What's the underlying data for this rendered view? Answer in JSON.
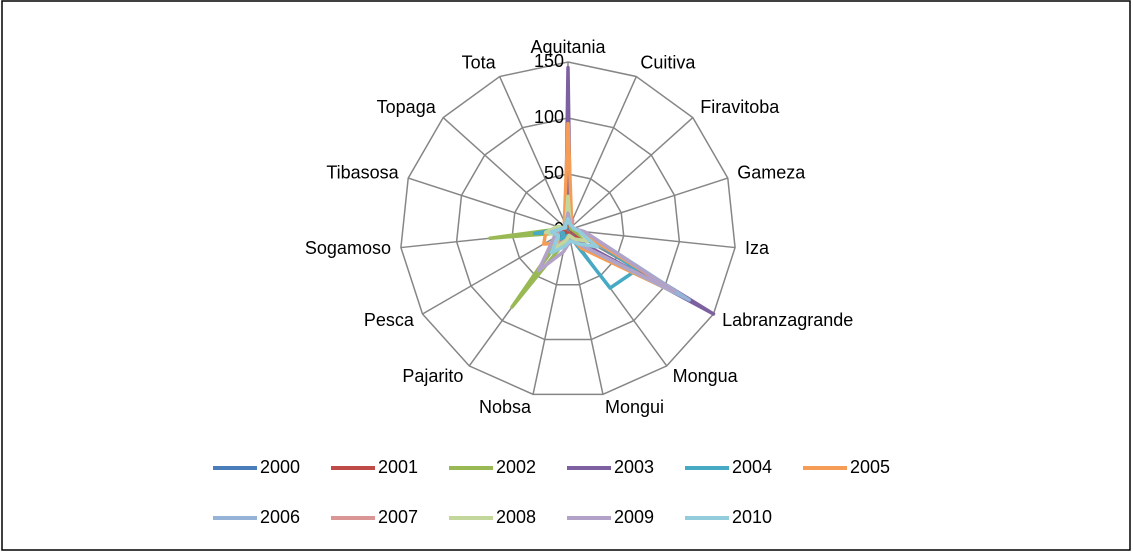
{
  "chart_data": {
    "type": "radar",
    "categories": [
      "Aquitania",
      "Cuitiva",
      "Firavitoba",
      "Gameza",
      "Iza",
      "Labranzagrande",
      "Mongua",
      "Mongui",
      "Nobsa",
      "Pajarito",
      "Pesca",
      "Sogamoso",
      "Tibasosa",
      "Topaga",
      "Tota"
    ],
    "rlim": [
      0,
      150
    ],
    "rticks": [
      0,
      50,
      100,
      150
    ],
    "grid": true,
    "legend": "bottom",
    "series": [
      {
        "name": "2000",
        "color": "#4a7ebb",
        "values": [
          5,
          3,
          2,
          2,
          3,
          10,
          5,
          3,
          3,
          3,
          3,
          5,
          3,
          2,
          3
        ]
      },
      {
        "name": "2001",
        "color": "#be4b48",
        "values": [
          5,
          5,
          3,
          3,
          3,
          15,
          8,
          3,
          3,
          3,
          3,
          5,
          3,
          2,
          3
        ]
      },
      {
        "name": "2002",
        "color": "#98b954",
        "values": [
          10,
          5,
          3,
          3,
          5,
          20,
          10,
          5,
          10,
          85,
          5,
          70,
          5,
          3,
          5
        ]
      },
      {
        "name": "2003",
        "color": "#7d60a0",
        "values": [
          145,
          5,
          5,
          5,
          10,
          150,
          10,
          5,
          10,
          20,
          5,
          10,
          5,
          3,
          5
        ]
      },
      {
        "name": "2004",
        "color": "#46aac5",
        "values": [
          10,
          5,
          5,
          5,
          10,
          71,
          64,
          5,
          5,
          10,
          5,
          30,
          5,
          3,
          5
        ]
      },
      {
        "name": "2005",
        "color": "#f59d56",
        "values": [
          95,
          8,
          5,
          5,
          10,
          120,
          20,
          5,
          10,
          15,
          25,
          20,
          5,
          3,
          8
        ]
      },
      {
        "name": "2006",
        "color": "#95b3d7",
        "values": [
          15,
          5,
          5,
          5,
          15,
          125,
          15,
          5,
          10,
          20,
          10,
          10,
          5,
          3,
          5
        ]
      },
      {
        "name": "2007",
        "color": "#d99694",
        "values": [
          10,
          10,
          5,
          5,
          10,
          20,
          10,
          5,
          10,
          15,
          10,
          10,
          5,
          3,
          5
        ]
      },
      {
        "name": "2008",
        "color": "#c3d69b",
        "values": [
          30,
          5,
          5,
          5,
          10,
          20,
          10,
          5,
          10,
          20,
          10,
          20,
          10,
          3,
          5
        ]
      },
      {
        "name": "2009",
        "color": "#b3a2c7",
        "values": [
          15,
          5,
          5,
          5,
          15,
          110,
          15,
          10,
          20,
          45,
          15,
          10,
          5,
          3,
          5
        ]
      },
      {
        "name": "2010",
        "color": "#93cddd",
        "values": [
          10,
          5,
          5,
          5,
          10,
          30,
          15,
          10,
          15,
          25,
          10,
          15,
          5,
          3,
          5
        ]
      }
    ]
  }
}
